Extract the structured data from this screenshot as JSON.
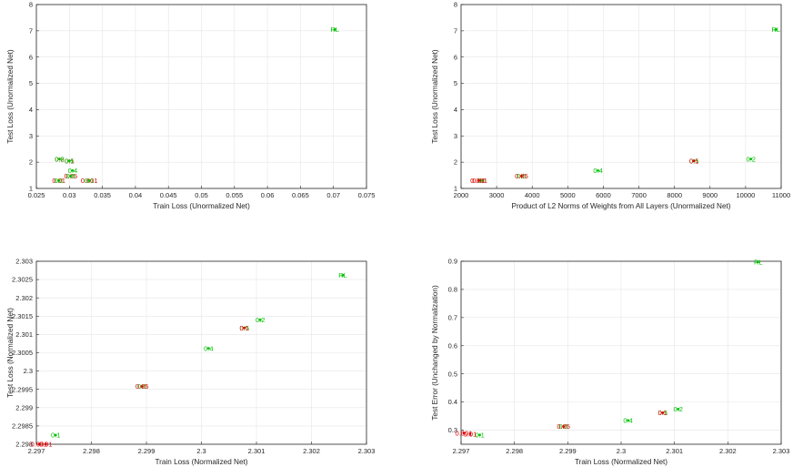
{
  "chart_data": [
    {
      "type": "scatter",
      "xlabel": "Train Loss (Unormalized Net)",
      "ylabel": "Test Loss (Unormalized Net)",
      "xlim": [
        0.025,
        0.075
      ],
      "ylim": [
        1,
        8
      ],
      "xticks": [
        "0.025",
        "0.03",
        "0.035",
        "0.04",
        "0.045",
        "0.05",
        "0.055",
        "0.06",
        "0.065",
        "0.07",
        "0.075"
      ],
      "yticks": [
        "1",
        "2",
        "3",
        "4",
        "5",
        "6",
        "7",
        "8"
      ],
      "grid": true,
      "points": [
        {
          "x": 0.0702,
          "y": 7.05,
          "label": "RL",
          "color": "#00c000"
        },
        {
          "x": 0.0285,
          "y": 2.12,
          "label": "0.2",
          "color": "#e00000"
        },
        {
          "x": 0.0285,
          "y": 2.12,
          "label": "0.8",
          "color": "#00c000"
        },
        {
          "x": 0.03,
          "y": 2.05,
          "label": "0.1",
          "color": "#e00000"
        },
        {
          "x": 0.03,
          "y": 2.05,
          "label": "0.5",
          "color": "#00c000"
        },
        {
          "x": 0.0305,
          "y": 1.68,
          "label": "0.4",
          "color": "#00c000"
        },
        {
          "x": 0.0302,
          "y": 1.47,
          "label": "0.05",
          "color": "#e00000"
        },
        {
          "x": 0.0302,
          "y": 1.47,
          "label": "0.5",
          "color": "#00c000"
        },
        {
          "x": 0.0284,
          "y": 1.3,
          "label": "0.01",
          "color": "#e00000"
        },
        {
          "x": 0.0284,
          "y": 1.3,
          "label": "0.1",
          "color": "#00c000"
        },
        {
          "x": 0.033,
          "y": 1.3,
          "label": "0.001",
          "color": "#e00000"
        },
        {
          "x": 0.033,
          "y": 1.3,
          "label": "0.1",
          "color": "#00c000"
        }
      ]
    },
    {
      "type": "scatter",
      "xlabel": "Product of L2 Norms of Weights from All Layers (Unormalized Net)",
      "ylabel": "Test Loss (Unormalized Net)",
      "xlim": [
        2000,
        11000
      ],
      "ylim": [
        1,
        8
      ],
      "xticks": [
        "2000",
        "3000",
        "4000",
        "5000",
        "6000",
        "7000",
        "8000",
        "9000",
        "10000",
        "11000"
      ],
      "yticks": [
        "1",
        "2",
        "3",
        "4",
        "5",
        "6",
        "7",
        "8"
      ],
      "grid": true,
      "points": [
        {
          "x": 10850,
          "y": 7.05,
          "label": "RL",
          "color": "#00c000"
        },
        {
          "x": 10150,
          "y": 2.12,
          "label": "0.2",
          "color": "#00c000"
        },
        {
          "x": 8550,
          "y": 2.05,
          "label": "0.5",
          "color": "#00c000"
        },
        {
          "x": 8550,
          "y": 2.05,
          "label": "0.1",
          "color": "#e00000"
        },
        {
          "x": 5850,
          "y": 1.68,
          "label": "0.4",
          "color": "#00c000"
        },
        {
          "x": 3700,
          "y": 1.47,
          "label": "0.5",
          "color": "#00c000"
        },
        {
          "x": 3700,
          "y": 1.47,
          "label": "0.05",
          "color": "#e00000"
        },
        {
          "x": 2500,
          "y": 1.3,
          "label": "0.01",
          "color": "#e00000"
        },
        {
          "x": 2600,
          "y": 1.3,
          "label": "0.1",
          "color": "#00c000"
        },
        {
          "x": 2500,
          "y": 1.3,
          "label": "0.001",
          "color": "#e00000"
        }
      ]
    },
    {
      "type": "scatter",
      "xlabel": "Train Loss (Normalized Net)",
      "ylabel": "Test Loss (Normalized Net)",
      "xlim": [
        2.297,
        2.303
      ],
      "ylim": [
        2.298,
        2.303
      ],
      "xticks": [
        "2.297",
        "2.298",
        "2.299",
        "2.3",
        "2.301",
        "2.302",
        "2.303"
      ],
      "yticks": [
        "2.298",
        "2.2985",
        "2.299",
        "2.2995",
        "2.3",
        "2.3005",
        "2.301",
        "2.3015",
        "2.302",
        "2.3025",
        "2.303"
      ],
      "grid": true,
      "points": [
        {
          "x": 2.30257,
          "y": 2.30262,
          "label": "RL",
          "color": "#00c000"
        },
        {
          "x": 2.30107,
          "y": 2.3014,
          "label": "0.2",
          "color": "#00c000"
        },
        {
          "x": 2.30078,
          "y": 2.30118,
          "label": "0.5",
          "color": "#00c000"
        },
        {
          "x": 2.30078,
          "y": 2.30118,
          "label": "0.1",
          "color": "#e00000"
        },
        {
          "x": 2.30013,
          "y": 2.30062,
          "label": "0.4",
          "color": "#00c000"
        },
        {
          "x": 2.29892,
          "y": 2.29958,
          "label": "0.5",
          "color": "#00c000"
        },
        {
          "x": 2.29892,
          "y": 2.29958,
          "label": "0.05",
          "color": "#e00000"
        },
        {
          "x": 2.29735,
          "y": 2.29825,
          "label": "0.1",
          "color": "#00c000"
        },
        {
          "x": 2.29717,
          "y": 2.298,
          "label": "0.01",
          "color": "#e00000"
        },
        {
          "x": 2.29705,
          "y": 2.298,
          "label": "0.001",
          "color": "#e00000"
        }
      ]
    },
    {
      "type": "scatter",
      "xlabel": "Train Loss (Normalized Net)",
      "ylabel": "Test Error (Unchanged by Normalization)",
      "xlim": [
        2.297,
        2.303
      ],
      "ylim": [
        0.25,
        0.9
      ],
      "xticks": [
        "2.297",
        "2.298",
        "2.299",
        "2.3",
        "2.301",
        "2.302",
        "2.303"
      ],
      "yticks": [
        "0.3",
        "0.4",
        "0.5",
        "0.6",
        "0.7",
        "0.8",
        "0.9"
      ],
      "grid": true,
      "points": [
        {
          "x": 2.30257,
          "y": 0.898,
          "label": "RL",
          "color": "#00c000"
        },
        {
          "x": 2.30107,
          "y": 0.375,
          "label": "0.2",
          "color": "#00c000"
        },
        {
          "x": 2.30078,
          "y": 0.362,
          "label": "0.5",
          "color": "#00c000"
        },
        {
          "x": 2.30078,
          "y": 0.362,
          "label": "0.1",
          "color": "#e00000"
        },
        {
          "x": 2.30013,
          "y": 0.335,
          "label": "0.4",
          "color": "#00c000"
        },
        {
          "x": 2.29892,
          "y": 0.313,
          "label": "0.5",
          "color": "#00c000"
        },
        {
          "x": 2.29892,
          "y": 0.313,
          "label": "0.05",
          "color": "#e00000"
        },
        {
          "x": 2.29735,
          "y": 0.283,
          "label": "0.1",
          "color": "#00c000"
        },
        {
          "x": 2.29717,
          "y": 0.287,
          "label": "0.01",
          "color": "#e00000"
        },
        {
          "x": 2.29705,
          "y": 0.29,
          "label": "0.001",
          "color": "#e00000"
        }
      ]
    }
  ]
}
